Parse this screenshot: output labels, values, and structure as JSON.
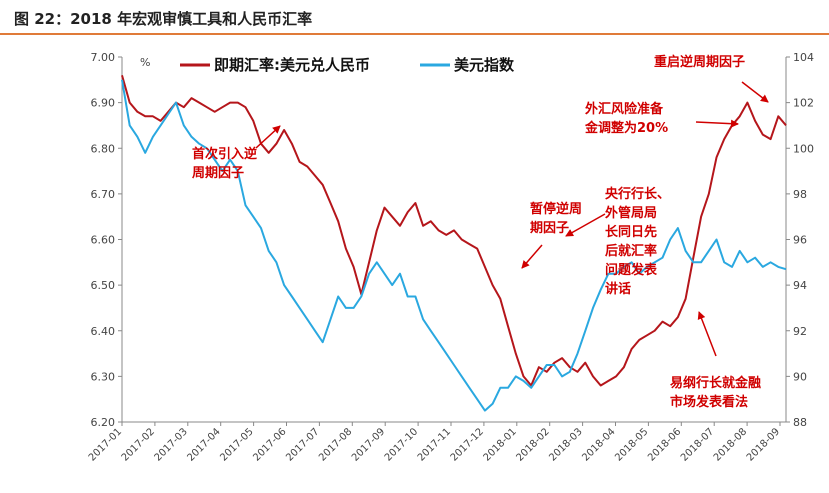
{
  "title": "图 22：2018 年宏观审慎工具和人民币汇率",
  "colors": {
    "title_rule": "#e07b39",
    "usdcny": "#b5161b",
    "dxy": "#2aa8e0",
    "annotation": "#d00000"
  },
  "chart_data": {
    "type": "line",
    "title": "",
    "y_left_unit": "%",
    "y_left_ticks": [
      "7.00",
      "6.90",
      "6.80",
      "6.70",
      "6.60",
      "6.50",
      "6.40",
      "6.30",
      "6.20"
    ],
    "y_left_range": [
      6.2,
      7.0
    ],
    "y_right_ticks": [
      "104",
      "102",
      "100",
      "98",
      "96",
      "94",
      "92",
      "90",
      "88"
    ],
    "y_right_range": [
      88,
      104
    ],
    "x_ticks": [
      "2017-01",
      "2017-02",
      "2017-03",
      "2017-04",
      "2017-05",
      "2017-06",
      "2017-07",
      "2017-08",
      "2017-09",
      "2017-10",
      "2017-11",
      "2017-12",
      "2018-01",
      "2018-02",
      "2018-03",
      "2018-04",
      "2018-05",
      "2018-06",
      "2018-07",
      "2018-08",
      "2018-09"
    ],
    "legend_position": "top",
    "series": [
      {
        "name": "即期汇率:美元兑人民币",
        "axis": "left",
        "color": "#b5161b",
        "x": [
          2017.0,
          2017.02,
          2017.04,
          2017.06,
          2017.08,
          2017.1,
          2017.12,
          2017.14,
          2017.16,
          2017.18,
          2017.2,
          2017.22,
          2017.24,
          2017.26,
          2017.28,
          2017.3,
          2017.32,
          2017.34,
          2017.36,
          2017.38,
          2017.4,
          2017.42,
          2017.44,
          2017.46,
          2017.48,
          2017.5,
          2017.52,
          2017.54,
          2017.56,
          2017.58,
          2017.6,
          2017.62,
          2017.64,
          2017.66,
          2017.68,
          2017.7,
          2017.72,
          2017.74,
          2017.76,
          2017.78,
          2017.8,
          2017.82,
          2017.84,
          2017.86,
          2017.88,
          2017.9,
          2017.92,
          2017.94,
          2017.96,
          2017.98,
          2018.0,
          2018.02,
          2018.04,
          2018.06,
          2018.08,
          2018.1,
          2018.12,
          2018.14,
          2018.16,
          2018.18,
          2018.2,
          2018.22,
          2018.24,
          2018.26,
          2018.28,
          2018.3,
          2018.32,
          2018.34,
          2018.36,
          2018.38,
          2018.4,
          2018.42,
          2018.44,
          2018.46,
          2018.48,
          2018.5,
          2018.52,
          2018.54,
          2018.56,
          2018.58,
          2018.6,
          2018.62,
          2018.64,
          2018.66,
          2018.68,
          2018.7,
          2018.72
        ],
        "y": [
          6.96,
          6.9,
          6.88,
          6.87,
          6.87,
          6.86,
          6.88,
          6.9,
          6.89,
          6.91,
          6.9,
          6.89,
          6.88,
          6.89,
          6.9,
          6.9,
          6.89,
          6.86,
          6.81,
          6.79,
          6.81,
          6.84,
          6.81,
          6.77,
          6.76,
          6.74,
          6.72,
          6.68,
          6.64,
          6.58,
          6.54,
          6.48,
          6.55,
          6.62,
          6.67,
          6.65,
          6.63,
          6.66,
          6.68,
          6.63,
          6.64,
          6.62,
          6.61,
          6.62,
          6.6,
          6.59,
          6.58,
          6.54,
          6.5,
          6.47,
          6.41,
          6.35,
          6.3,
          6.28,
          6.32,
          6.31,
          6.33,
          6.34,
          6.32,
          6.31,
          6.33,
          6.3,
          6.28,
          6.29,
          6.3,
          6.32,
          6.36,
          6.38,
          6.39,
          6.4,
          6.42,
          6.41,
          6.43,
          6.47,
          6.56,
          6.65,
          6.7,
          6.78,
          6.82,
          6.85,
          6.87,
          6.9,
          6.86,
          6.83,
          6.82,
          6.87,
          6.85
        ]
      },
      {
        "name": "美元指数",
        "axis": "right",
        "color": "#2aa8e0",
        "x": [
          2017.0,
          2017.02,
          2017.04,
          2017.06,
          2017.08,
          2017.1,
          2017.12,
          2017.14,
          2017.16,
          2017.18,
          2017.2,
          2017.22,
          2017.24,
          2017.26,
          2017.28,
          2017.3,
          2017.32,
          2017.34,
          2017.36,
          2017.38,
          2017.4,
          2017.42,
          2017.44,
          2017.46,
          2017.48,
          2017.5,
          2017.52,
          2017.54,
          2017.56,
          2017.58,
          2017.6,
          2017.62,
          2017.64,
          2017.66,
          2017.68,
          2017.7,
          2017.72,
          2017.74,
          2017.76,
          2017.78,
          2017.8,
          2017.82,
          2017.84,
          2017.86,
          2017.88,
          2017.9,
          2017.92,
          2017.94,
          2017.96,
          2017.98,
          2018.0,
          2018.02,
          2018.04,
          2018.06,
          2018.08,
          2018.1,
          2018.12,
          2018.14,
          2018.16,
          2018.18,
          2018.2,
          2018.22,
          2018.24,
          2018.26,
          2018.28,
          2018.3,
          2018.32,
          2018.34,
          2018.36,
          2018.38,
          2018.4,
          2018.42,
          2018.44,
          2018.46,
          2018.48,
          2018.5,
          2018.52,
          2018.54,
          2018.56,
          2018.58,
          2018.6,
          2018.62,
          2018.64,
          2018.66,
          2018.68,
          2018.7,
          2018.72
        ],
        "y": [
          103.0,
          101.0,
          100.5,
          99.8,
          100.5,
          101.0,
          101.5,
          102.0,
          101.0,
          100.5,
          100.2,
          100.0,
          99.5,
          99.0,
          99.5,
          99.0,
          97.5,
          97.0,
          96.5,
          95.5,
          95.0,
          94.0,
          93.5,
          93.0,
          92.5,
          92.0,
          91.5,
          92.5,
          93.5,
          93.0,
          93.0,
          93.5,
          94.5,
          95.0,
          94.5,
          94.0,
          94.5,
          93.5,
          93.5,
          92.5,
          92.0,
          91.5,
          91.0,
          90.5,
          90.0,
          89.5,
          89.0,
          88.5,
          88.8,
          89.5,
          89.5,
          90.0,
          89.8,
          89.5,
          90.0,
          90.5,
          90.5,
          90.0,
          90.2,
          91.0,
          92.0,
          93.0,
          93.8,
          94.5,
          94.5,
          94.8,
          95.0,
          94.5,
          94.8,
          95.0,
          95.2,
          96.0,
          96.5,
          95.5,
          95.0,
          95.0,
          95.5,
          96.0,
          95.0,
          94.8,
          95.5,
          95.0,
          95.2,
          94.8,
          95.0,
          94.8,
          94.7
        ]
      }
    ],
    "annotations": [
      {
        "id": "first-introduce",
        "lines": [
          "首次引入逆",
          "周期因子"
        ]
      },
      {
        "id": "pause",
        "lines": [
          "暂停逆周",
          "期因子"
        ]
      },
      {
        "id": "heads-speech",
        "lines": [
          "央行行长、",
          "外管局局",
          "长同日先",
          "后就汇率",
          "问题发表",
          "讲话"
        ]
      },
      {
        "id": "fx-risk-reserve",
        "lines": [
          "外汇风险准备",
          "金调整为20%"
        ]
      },
      {
        "id": "restart",
        "lines": [
          "重启逆周期因子"
        ]
      },
      {
        "id": "yi-gang-remarks",
        "lines": [
          "易纲行长就金融",
          "市场发表看法"
        ]
      }
    ]
  }
}
